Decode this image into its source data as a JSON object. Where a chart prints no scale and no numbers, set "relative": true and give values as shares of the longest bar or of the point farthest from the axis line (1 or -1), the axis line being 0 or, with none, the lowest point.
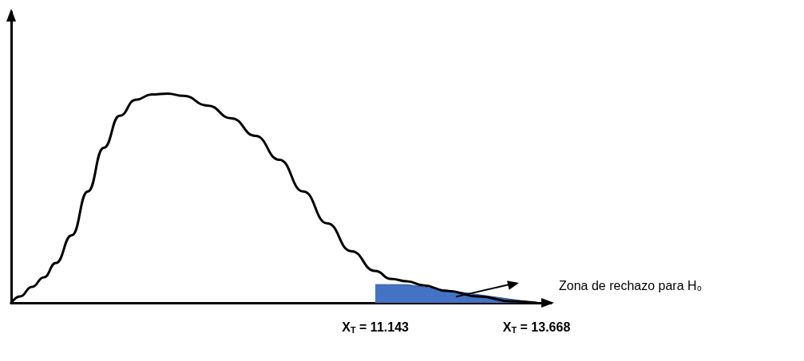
{
  "chart_data": {
    "type": "line",
    "relative": true,
    "marker": "none",
    "line_style": "solid",
    "xlim": [
      5.44,
      13.893
    ],
    "xticks": [
      {
        "value": 11.143,
        "label": "X$_{T}$ = 11.143"
      },
      {
        "value": 13.668,
        "label": "X$_{T}$ = 13.668"
      }
    ],
    "annotations": [
      "Zona de rechazo para H₀"
    ],
    "series": [
      {
        "type": "area",
        "color": "#4472c4",
        "x": [
          11.143,
          11.643,
          13.668
        ],
        "values": [
          0.087,
          0.087,
          0
        ]
      },
      {
        "color": "#000000",
        "x": [
          5.44,
          5.578,
          5.765,
          5.953,
          6.14,
          6.39,
          6.64,
          6.89,
          7.14,
          7.39,
          7.64,
          7.89,
          8.14,
          8.515,
          8.89,
          9.265,
          9.64,
          10.015,
          10.39,
          10.765,
          11.143,
          11.39,
          11.64,
          11.89,
          12.265,
          12.765,
          13.265,
          13.668
        ],
        "values": [
          0,
          0.03,
          0.076,
          0.122,
          0.19,
          0.323,
          0.532,
          0.741,
          0.894,
          0.97,
          0.996,
          1,
          0.989,
          0.943,
          0.882,
          0.798,
          0.684,
          0.532,
          0.38,
          0.247,
          0.152,
          0.114,
          0.103,
          0.084,
          0.057,
          0.03,
          0.008,
          0
        ]
      }
    ]
  }
}
